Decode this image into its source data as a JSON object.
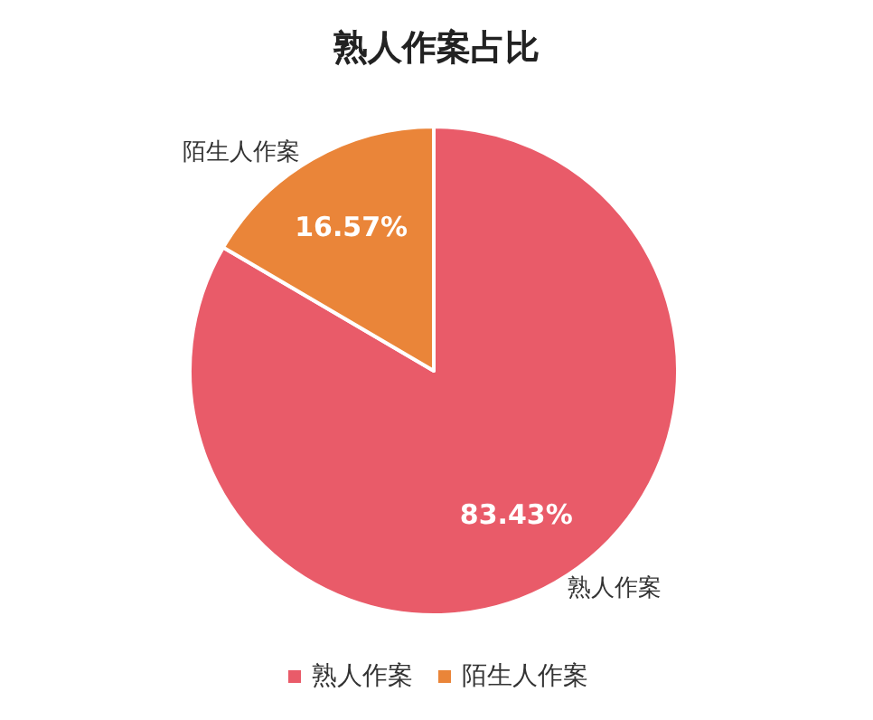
{
  "chart_data": {
    "type": "pie",
    "title": "熟人作案占比",
    "categories": [
      "熟人作案",
      "陌生人作案"
    ],
    "values": [
      83.43,
      16.57
    ],
    "colors": [
      "#e95b69",
      "#ea8539"
    ],
    "value_labels": [
      "83.43%",
      "16.57%"
    ],
    "legend": "bottom"
  }
}
